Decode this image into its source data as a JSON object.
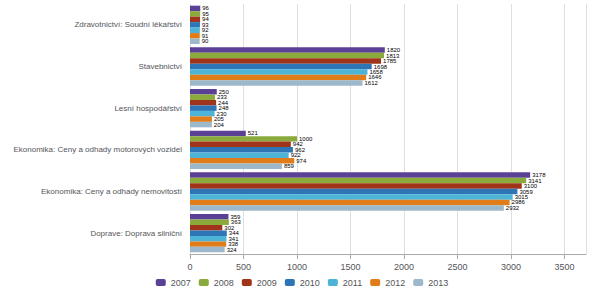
{
  "chart_data": {
    "type": "bar",
    "orientation": "horizontal",
    "categories": [
      "Zdravotnictví: Soudní lékařství",
      "Stavebnictví",
      "Lesní hospodářství",
      "Ekonomika: Ceny a odhady motorových vozidel",
      "Ekonomika: Ceny a odhady nemovitostí",
      "Doprave: Doprava silniční"
    ],
    "series": [
      {
        "name": "2007",
        "color": "#5b4196",
        "values": [
          96,
          1820,
          250,
          521,
          3178,
          359
        ]
      },
      {
        "name": "2008",
        "color": "#8aaa3c",
        "values": [
          95,
          1813,
          233,
          1000,
          3141,
          363
        ]
      },
      {
        "name": "2009",
        "color": "#a0341a",
        "values": [
          94,
          1785,
          244,
          942,
          3100,
          302
        ]
      },
      {
        "name": "2010",
        "color": "#2e75b6",
        "values": [
          93,
          1698,
          248,
          962,
          3059,
          344
        ]
      },
      {
        "name": "2011",
        "color": "#4db4d8",
        "values": [
          92,
          1658,
          230,
          922,
          3015,
          341
        ]
      },
      {
        "name": "2012",
        "color": "#e07d1a",
        "values": [
          91,
          1646,
          205,
          974,
          2986,
          338
        ]
      },
      {
        "name": "2013",
        "color": "#9eb8cb",
        "values": [
          90,
          1612,
          204,
          859,
          2932,
          324
        ]
      }
    ],
    "xlim": [
      0,
      3700
    ],
    "xticks": [
      0,
      500,
      1000,
      1500,
      2000,
      2500,
      3000,
      3500
    ],
    "grid": true,
    "legend": "bottom",
    "data_labels": true
  }
}
